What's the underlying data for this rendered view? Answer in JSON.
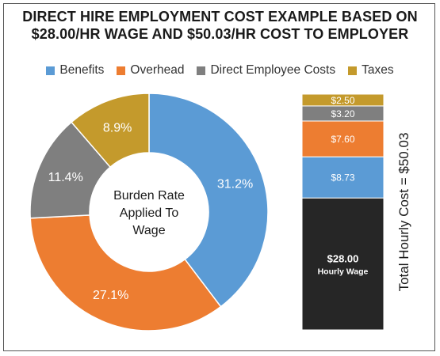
{
  "title": {
    "line1": "DIRECT HIRE EMPLOYMENT COST EXAMPLE BASED ON",
    "line2": "$28.00/HR WAGE AND $50.03/HR COST TO EMPLOYER"
  },
  "colors": {
    "benefits": "#5b9bd5",
    "overhead": "#ed7d31",
    "direct": "#7f7f7f",
    "taxes": "#c49a2c",
    "wage": "#262626"
  },
  "chart_data": [
    {
      "type": "pie",
      "variant": "donut",
      "center_label": [
        "Burden Rate",
        "Applied To",
        "Wage"
      ],
      "legend": [
        "Benefits",
        "Overhead",
        "Direct Employee Costs",
        "Taxes"
      ],
      "legend_placement": "top",
      "slices": [
        {
          "name": "Benefits",
          "value": 31.2,
          "label": "31.2%"
        },
        {
          "name": "Overhead",
          "value": 27.1,
          "label": "27.1%"
        },
        {
          "name": "Direct Employee Costs",
          "value": 11.4,
          "label": "11.4%"
        },
        {
          "name": "Taxes",
          "value": 8.9,
          "label": "8.9%"
        }
      ]
    },
    {
      "type": "bar",
      "variant": "stacked",
      "ylabel": "Total Hourly Cost = $50.03",
      "segments": [
        {
          "name": "Hourly Wage",
          "value": 28.0,
          "label": "$28.00",
          "sublabel": "Hourly Wage"
        },
        {
          "name": "Benefits",
          "value": 8.73,
          "label": "$8.73"
        },
        {
          "name": "Overhead",
          "value": 7.6,
          "label": "$7.60"
        },
        {
          "name": "Direct Employee Costs",
          "value": 3.2,
          "label": "$3.20"
        },
        {
          "name": "Taxes",
          "value": 2.5,
          "label": "$2.50"
        }
      ],
      "total": 50.03
    }
  ]
}
